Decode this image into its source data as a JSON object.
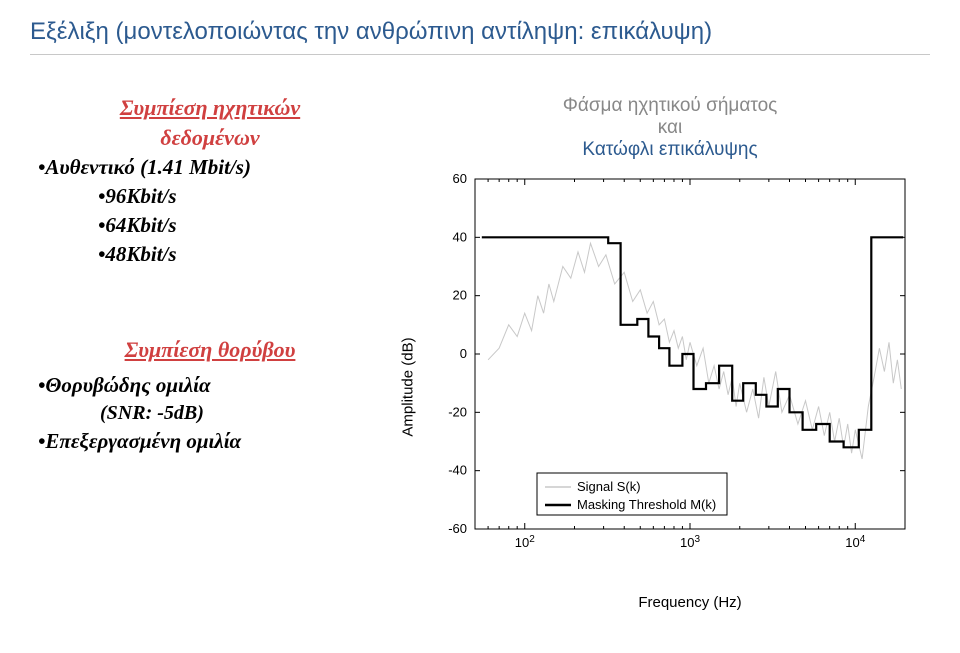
{
  "title": "Εξέλιξη (μοντελοποιώντας την ανθρώπινη αντίληψη: επικάλυψη)",
  "left": {
    "heading1_line1": "Συμπίεση ηχητικών",
    "heading1_line2": "δεδομένων",
    "bullets1": [
      {
        "text": "Αυθεντικό (1.41 Mbit/s)",
        "indent": 0
      },
      {
        "text": "96Kbit/s",
        "indent": 1
      },
      {
        "text": "64Kbit/s",
        "indent": 1
      },
      {
        "text": "48Kbit/s",
        "indent": 1
      }
    ],
    "heading2": "Συμπίεση θορύβου",
    "bullets2": [
      {
        "text": "Θορυβώδης ομιλία",
        "indent": 0
      },
      {
        "text": "(SNR: -5dB)",
        "sub": true
      },
      {
        "text": "Επεξεργασμένη ομιλία",
        "indent": 0
      }
    ]
  },
  "caption": {
    "line1": "Φάσμα ηχητικού σήματος",
    "line2": "και",
    "line3": "Κατώφλι επικάλυψης"
  },
  "chart": {
    "type": "line",
    "ylabel": "Amplitude (dB)",
    "xlabel": "Frequency (Hz)",
    "ylim": [
      -60,
      60
    ],
    "ytick_step": 20,
    "yticks": [
      -60,
      -40,
      -20,
      0,
      20,
      40,
      60
    ],
    "xticks": [
      {
        "value": 100,
        "label_html": "10<tspan dy=\"-5\" font-size=\"10\">2</tspan>"
      },
      {
        "value": 1000,
        "label_html": "10<tspan dy=\"-5\" font-size=\"10\">3</tspan>"
      },
      {
        "value": 10000,
        "label_html": "10<tspan dy=\"-5\" font-size=\"10\">4</tspan>"
      }
    ],
    "xlim_log": [
      50,
      20000
    ],
    "background_color": "#ffffff",
    "axis_color": "#000000",
    "signal_color": "#c8c8c8",
    "mask_color": "#000000",
    "mask_line_width": 2.2,
    "signal_line_width": 1,
    "legend": {
      "items": [
        {
          "label": "Signal S(k)",
          "color": "#c8c8c8",
          "width": 1.5
        },
        {
          "label": "Masking Threshold M(k)",
          "color": "#000000",
          "width": 2.5
        }
      ]
    },
    "signal_points": [
      [
        60,
        -2
      ],
      [
        70,
        2
      ],
      [
        80,
        10
      ],
      [
        90,
        6
      ],
      [
        100,
        14
      ],
      [
        110,
        8
      ],
      [
        120,
        20
      ],
      [
        130,
        14
      ],
      [
        140,
        24
      ],
      [
        150,
        18
      ],
      [
        170,
        30
      ],
      [
        190,
        26
      ],
      [
        210,
        35
      ],
      [
        230,
        28
      ],
      [
        250,
        38
      ],
      [
        280,
        30
      ],
      [
        310,
        34
      ],
      [
        350,
        24
      ],
      [
        400,
        28
      ],
      [
        450,
        18
      ],
      [
        500,
        22
      ],
      [
        550,
        14
      ],
      [
        600,
        18
      ],
      [
        650,
        10
      ],
      [
        700,
        12
      ],
      [
        750,
        4
      ],
      [
        800,
        8
      ],
      [
        850,
        2
      ],
      [
        900,
        6
      ],
      [
        950,
        -2
      ],
      [
        1000,
        4
      ],
      [
        1100,
        -4
      ],
      [
        1200,
        2
      ],
      [
        1300,
        -10
      ],
      [
        1400,
        -4
      ],
      [
        1500,
        -12
      ],
      [
        1600,
        -6
      ],
      [
        1700,
        -14
      ],
      [
        1800,
        -8
      ],
      [
        1900,
        -18
      ],
      [
        2000,
        -10
      ],
      [
        2200,
        -20
      ],
      [
        2400,
        -12
      ],
      [
        2600,
        -22
      ],
      [
        2800,
        -8
      ],
      [
        3000,
        -18
      ],
      [
        3300,
        -6
      ],
      [
        3600,
        -20
      ],
      [
        4000,
        -14
      ],
      [
        4500,
        -24
      ],
      [
        5000,
        -16
      ],
      [
        5500,
        -26
      ],
      [
        6000,
        -18
      ],
      [
        6500,
        -28
      ],
      [
        7000,
        -20
      ],
      [
        7500,
        -30
      ],
      [
        8000,
        -22
      ],
      [
        8500,
        -32
      ],
      [
        9000,
        -24
      ],
      [
        9500,
        -34
      ],
      [
        10000,
        -26
      ],
      [
        11000,
        -36
      ],
      [
        12000,
        -18
      ],
      [
        13000,
        -8
      ],
      [
        14000,
        2
      ],
      [
        15000,
        -6
      ],
      [
        16000,
        4
      ],
      [
        17000,
        -10
      ],
      [
        18000,
        -2
      ],
      [
        19000,
        -12
      ]
    ],
    "mask_points": [
      [
        55,
        40
      ],
      [
        320,
        40
      ],
      [
        320,
        38
      ],
      [
        380,
        38
      ],
      [
        380,
        10
      ],
      [
        480,
        10
      ],
      [
        480,
        12
      ],
      [
        560,
        12
      ],
      [
        560,
        6
      ],
      [
        650,
        6
      ],
      [
        650,
        2
      ],
      [
        750,
        2
      ],
      [
        750,
        -4
      ],
      [
        900,
        -4
      ],
      [
        900,
        0
      ],
      [
        1050,
        0
      ],
      [
        1050,
        -12
      ],
      [
        1250,
        -12
      ],
      [
        1250,
        -10
      ],
      [
        1500,
        -10
      ],
      [
        1500,
        -4
      ],
      [
        1800,
        -4
      ],
      [
        1800,
        -16
      ],
      [
        2100,
        -16
      ],
      [
        2100,
        -10
      ],
      [
        2500,
        -10
      ],
      [
        2500,
        -14
      ],
      [
        2900,
        -14
      ],
      [
        2900,
        -18
      ],
      [
        3400,
        -18
      ],
      [
        3400,
        -12
      ],
      [
        4000,
        -12
      ],
      [
        4000,
        -20
      ],
      [
        4800,
        -20
      ],
      [
        4800,
        -26
      ],
      [
        5800,
        -26
      ],
      [
        5800,
        -24
      ],
      [
        7000,
        -24
      ],
      [
        7000,
        -30
      ],
      [
        8500,
        -30
      ],
      [
        8500,
        -32
      ],
      [
        10500,
        -32
      ],
      [
        10500,
        -26
      ],
      [
        12500,
        -26
      ],
      [
        12500,
        40
      ],
      [
        19500,
        40
      ]
    ]
  }
}
